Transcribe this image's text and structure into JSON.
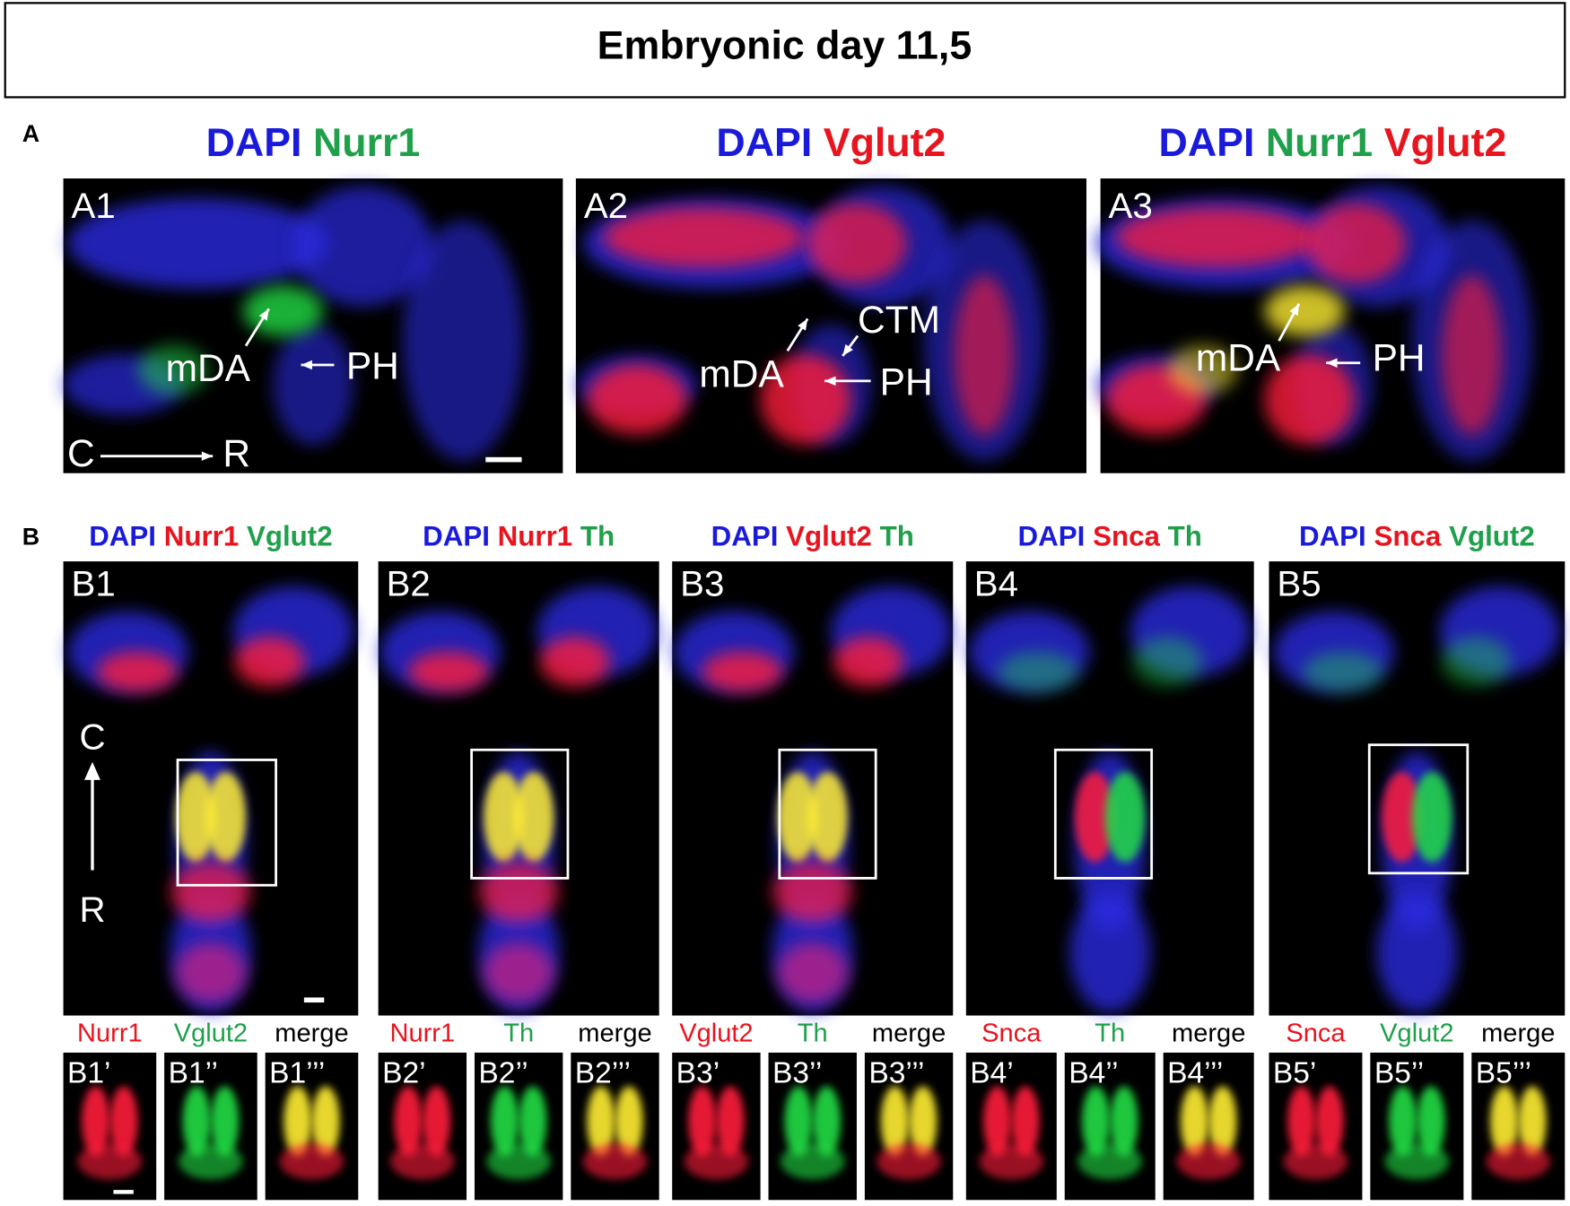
{
  "header": {
    "title": "Embryonic day 11,5"
  },
  "section_a": {
    "label": "A",
    "panels": [
      {
        "id": "A1",
        "heading": [
          {
            "text": "DAPI",
            "color": "#1a1adb"
          },
          {
            "text": "Nurr1",
            "color": "#1fa04a"
          }
        ],
        "annotations": [
          "mDA",
          "PH",
          "C",
          "R"
        ]
      },
      {
        "id": "A2",
        "heading": [
          {
            "text": "DAPI",
            "color": "#1a1adb"
          },
          {
            "text": "Vglut2",
            "color": "#e8141e"
          }
        ],
        "annotations": [
          "CTM",
          "mDA",
          "PH"
        ]
      },
      {
        "id": "A3",
        "heading": [
          {
            "text": "DAPI",
            "color": "#1a1adb"
          },
          {
            "text": "Nurr1",
            "color": "#1fa04a"
          },
          {
            "text": "Vglut2",
            "color": "#e8141e"
          }
        ],
        "annotations": [
          "mDA",
          "PH"
        ]
      }
    ]
  },
  "section_b": {
    "label": "B",
    "panels": [
      {
        "id": "B1",
        "heading": [
          {
            "text": "DAPI",
            "color": "#1a1adb"
          },
          {
            "text": "Nurr1",
            "color": "#e8141e"
          },
          {
            "text": "Vglut2",
            "color": "#1fa04a"
          }
        ],
        "annotations": [
          "C",
          "R"
        ],
        "insets": [
          {
            "channel": "Nurr1",
            "color": "#e8141e",
            "id": "B1’"
          },
          {
            "channel": "Vglut2",
            "color": "#1fa04a",
            "id": "B1’’"
          },
          {
            "channel": "merge",
            "color": "#000000",
            "id": "B1’’’"
          }
        ]
      },
      {
        "id": "B2",
        "heading": [
          {
            "text": "DAPI",
            "color": "#1a1adb"
          },
          {
            "text": "Nurr1",
            "color": "#e8141e"
          },
          {
            "text": "Th",
            "color": "#1fa04a"
          }
        ],
        "annotations": [],
        "insets": [
          {
            "channel": "Nurr1",
            "color": "#e8141e",
            "id": "B2’"
          },
          {
            "channel": "Th",
            "color": "#1fa04a",
            "id": "B2’’"
          },
          {
            "channel": "merge",
            "color": "#000000",
            "id": "B2’’’"
          }
        ]
      },
      {
        "id": "B3",
        "heading": [
          {
            "text": "DAPI",
            "color": "#1a1adb"
          },
          {
            "text": "Vglut2",
            "color": "#e8141e"
          },
          {
            "text": "Th",
            "color": "#1fa04a"
          }
        ],
        "annotations": [],
        "insets": [
          {
            "channel": "Vglut2",
            "color": "#e8141e",
            "id": "B3’"
          },
          {
            "channel": "Th",
            "color": "#1fa04a",
            "id": "B3’’"
          },
          {
            "channel": "merge",
            "color": "#000000",
            "id": "B3’’’"
          }
        ]
      },
      {
        "id": "B4",
        "heading": [
          {
            "text": "DAPI",
            "color": "#1a1adb"
          },
          {
            "text": "Snca",
            "color": "#e8141e"
          },
          {
            "text": "Th",
            "color": "#1fa04a"
          }
        ],
        "annotations": [],
        "insets": [
          {
            "channel": "Snca",
            "color": "#e8141e",
            "id": "B4’"
          },
          {
            "channel": "Th",
            "color": "#1fa04a",
            "id": "B4’’"
          },
          {
            "channel": "merge",
            "color": "#000000",
            "id": "B4’’’"
          }
        ]
      },
      {
        "id": "B5",
        "heading": [
          {
            "text": "DAPI",
            "color": "#1a1adb"
          },
          {
            "text": "Snca",
            "color": "#e8141e"
          },
          {
            "text": "Vglut2",
            "color": "#1fa04a"
          }
        ],
        "annotations": [],
        "insets": [
          {
            "channel": "Snca",
            "color": "#e8141e",
            "id": "B5’"
          },
          {
            "channel": "Vglut2",
            "color": "#1fa04a",
            "id": "B5’’"
          },
          {
            "channel": "merge",
            "color": "#000000",
            "id": "B5’’’"
          }
        ]
      }
    ]
  }
}
